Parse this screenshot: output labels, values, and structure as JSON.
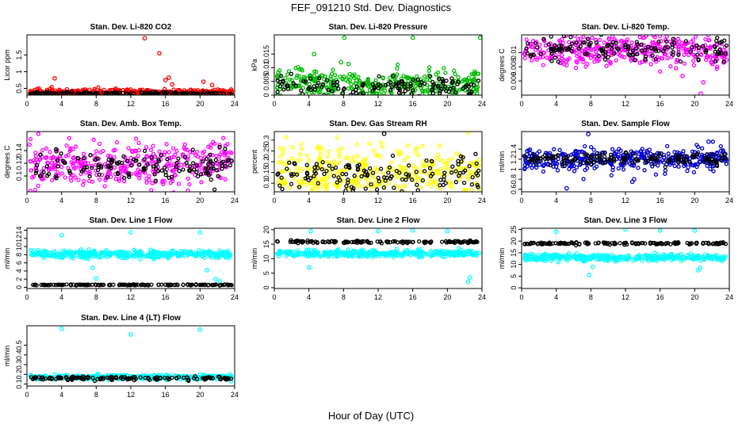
{
  "page": {
    "title": "FEF_091210  Std. Dev. Diagnostics",
    "xlabel": "Hour of Day (UTC)"
  },
  "chart_data": [
    {
      "type": "scatter",
      "title": "Stan. Dev. Li-820 CO2",
      "ylabel": "Licor ppm",
      "xlim": [
        0,
        24
      ],
      "ylim": [
        0.3,
        2.1
      ],
      "xticks": [
        0,
        4,
        8,
        12,
        16,
        20,
        24
      ],
      "yticks": [
        0.5,
        1.0,
        1.5
      ],
      "series": [
        {
          "color": "#ff0000",
          "baseline": 0.38,
          "spread": 0.05,
          "outliers": [
            [
              13.6,
              2.0
            ],
            [
              15.3,
              1.55
            ],
            [
              16.4,
              0.82
            ],
            [
              16.0,
              0.75
            ],
            [
              16.8,
              0.62
            ],
            [
              3.2,
              0.8
            ],
            [
              20.4,
              0.7
            ],
            [
              21.4,
              0.6
            ]
          ]
        },
        {
          "color": "#000000",
          "baseline": 0.35,
          "spread": 0.02,
          "outliers": []
        }
      ]
    },
    {
      "type": "scatter",
      "title": "Stan. Dev. Li-820 Pressure",
      "ylabel": "kPa",
      "xlim": [
        0,
        24
      ],
      "ylim": [
        0.0,
        0.022
      ],
      "xticks": [
        0,
        4,
        8,
        12,
        16,
        20,
        24
      ],
      "yticks": [
        0.0,
        0.005,
        0.01,
        0.015
      ],
      "series": [
        {
          "color": "#00bb00",
          "baseline": 0.004,
          "spread": 0.003,
          "outliers": [
            [
              8.1,
              0.021
            ],
            [
              16.0,
              0.021
            ],
            [
              23.8,
              0.021
            ],
            [
              4.6,
              0.015
            ],
            [
              7.7,
              0.012
            ]
          ]
        },
        {
          "color": "#000000",
          "baseline": 0.003,
          "spread": 0.002,
          "outliers": []
        }
      ]
    },
    {
      "type": "scatter",
      "title": "Stan. Dev. Li-820 Temp.",
      "ylabel": "degrees C",
      "xlim": [
        0,
        24
      ],
      "ylim": [
        0.004,
        0.0125
      ],
      "xticks": [
        0,
        4,
        8,
        12,
        16,
        20,
        24
      ],
      "yticks": [
        0.006,
        0.008,
        0.01
      ],
      "series": [
        {
          "color": "#ff00ff",
          "baseline": 0.0103,
          "spread": 0.0011,
          "outliers": [
            [
              20.7,
              0.0042
            ],
            [
              18.6,
              0.0067
            ],
            [
              21.0,
              0.0058
            ]
          ]
        },
        {
          "color": "#000000",
          "baseline": 0.0105,
          "spread": 0.0008,
          "outliers": []
        }
      ]
    },
    {
      "type": "scatter",
      "title": "Stan. Dev. Amb. Box Temp.",
      "ylabel": "degrees C",
      "xlim": [
        0,
        24
      ],
      "ylim": [
        0.075,
        0.17
      ],
      "xticks": [
        0,
        4,
        8,
        12,
        16,
        20,
        24
      ],
      "yticks": [
        0.1,
        0.12,
        0.14
      ],
      "series": [
        {
          "color": "#ff00ff",
          "baseline": 0.12,
          "spread": 0.018,
          "outliers": []
        },
        {
          "color": "#000000",
          "baseline": 0.115,
          "spread": 0.012,
          "outliers": []
        }
      ]
    },
    {
      "type": "scatter",
      "title": "Stan. Dev. Gas Stream RH",
      "ylabel": "percent",
      "xlim": [
        0,
        24
      ],
      "ylim": [
        0.06,
        0.34
      ],
      "xticks": [
        0,
        4,
        8,
        12,
        16,
        20,
        24
      ],
      "yticks": [
        0.1,
        0.15,
        0.2,
        0.25,
        0.3
      ],
      "series": [
        {
          "color": "#ffff00",
          "baseline": 0.15,
          "spread": 0.06,
          "outliers": []
        },
        {
          "color": "#000000",
          "baseline": 0.14,
          "spread": 0.04,
          "outliers": [
            [
              12.7,
              0.33
            ]
          ]
        }
      ]
    },
    {
      "type": "scatter",
      "title": "Stan. Dev. Sample Flow",
      "ylabel": "ml/min",
      "xlim": [
        0,
        24
      ],
      "ylim": [
        0.55,
        1.75
      ],
      "xticks": [
        0,
        4,
        8,
        12,
        16,
        20,
        24
      ],
      "yticks": [
        0.6,
        0.8,
        1.0,
        1.2,
        1.4
      ],
      "series": [
        {
          "color": "#0000cc",
          "baseline": 1.2,
          "spread": 0.11,
          "outliers": [
            [
              5.2,
              0.62
            ],
            [
              12.8,
              0.75
            ],
            [
              13.0,
              0.8
            ],
            [
              7.7,
              1.7
            ],
            [
              21.6,
              1.55
            ]
          ]
        },
        {
          "color": "#000000",
          "baseline": 1.2,
          "spread": 0.06,
          "outliers": []
        }
      ]
    },
    {
      "type": "scatter",
      "title": "Stan. Dev. Line 1 Flow",
      "ylabel": "ml/min",
      "xlim": [
        0,
        24
      ],
      "ylim": [
        -0.3,
        14.5
      ],
      "xticks": [
        0,
        4,
        8,
        12,
        16,
        20,
        24
      ],
      "yticks": [
        0,
        2,
        4,
        6,
        8,
        10,
        12,
        14
      ],
      "series": [
        {
          "color": "#00ffff",
          "baseline": 8.1,
          "spread": 0.5,
          "outliers": [
            [
              4.0,
              12.8
            ],
            [
              12.0,
              13.5
            ],
            [
              20.0,
              13.5
            ],
            [
              7.6,
              4.8
            ],
            [
              8.0,
              2.2
            ],
            [
              21.8,
              2.0
            ],
            [
              22.3,
              1.5
            ],
            [
              20.8,
              4.2
            ]
          ]
        },
        {
          "color": "#000000",
          "baseline": 0.6,
          "spread": 0.05,
          "outliers": []
        }
      ]
    },
    {
      "type": "scatter",
      "title": "Stan. Dev. Line 2 Flow",
      "ylabel": "ml/min",
      "xlim": [
        0,
        24
      ],
      "ylim": [
        -0.3,
        20.5
      ],
      "xticks": [
        0,
        4,
        8,
        12,
        16,
        20,
        24
      ],
      "yticks": [
        0,
        5,
        10,
        15,
        20
      ],
      "series": [
        {
          "color": "#00ffff",
          "baseline": 11.8,
          "spread": 0.6,
          "outliers": [
            [
              4.0,
              7.0
            ],
            [
              22.6,
              3.5
            ],
            [
              22.4,
              2.0
            ],
            [
              4.2,
              19.5
            ],
            [
              12.0,
              19.5
            ],
            [
              16.0,
              19.8
            ],
            [
              20.0,
              19.5
            ]
          ]
        },
        {
          "color": "#000000",
          "baseline": 15.8,
          "spread": 0.2,
          "outliers": []
        }
      ]
    },
    {
      "type": "scatter",
      "title": "Stan. Dev. Line 3 Flow",
      "ylabel": "ml/min",
      "xlim": [
        0,
        24
      ],
      "ylim": [
        -0.3,
        25.5
      ],
      "xticks": [
        0,
        4,
        8,
        12,
        16,
        20,
        24
      ],
      "yticks": [
        0,
        5,
        10,
        15,
        20,
        25
      ],
      "series": [
        {
          "color": "#00ffff",
          "baseline": 13.0,
          "spread": 0.7,
          "outliers": [
            [
              4.0,
              24.0
            ],
            [
              12.0,
              25.0
            ],
            [
              16.0,
              24.5
            ],
            [
              20.0,
              24.5
            ],
            [
              7.8,
              5.5
            ],
            [
              20.4,
              7.5
            ],
            [
              20.6,
              8.5
            ],
            [
              8.2,
              9.0
            ]
          ]
        },
        {
          "color": "#000000",
          "baseline": 19.0,
          "spread": 0.25,
          "outliers": []
        }
      ]
    },
    {
      "type": "scatter",
      "title": "Stan. Dev. Line 4 (LT) Flow",
      "ylabel": "ml/min",
      "xlim": [
        0,
        24
      ],
      "ylim": [
        0.08,
        0.7
      ],
      "xticks": [
        0,
        4,
        8,
        12,
        16,
        20,
        24
      ],
      "yticks": [
        0.1,
        0.2,
        0.3,
        0.4,
        0.5
      ],
      "series": [
        {
          "color": "#00ffff",
          "baseline": 0.17,
          "spread": 0.012,
          "outliers": [
            [
              4.0,
              0.67
            ],
            [
              12.0,
              0.61
            ],
            [
              20.0,
              0.66
            ]
          ]
        },
        {
          "color": "#000000",
          "baseline": 0.16,
          "spread": 0.01,
          "outliers": []
        }
      ]
    }
  ]
}
